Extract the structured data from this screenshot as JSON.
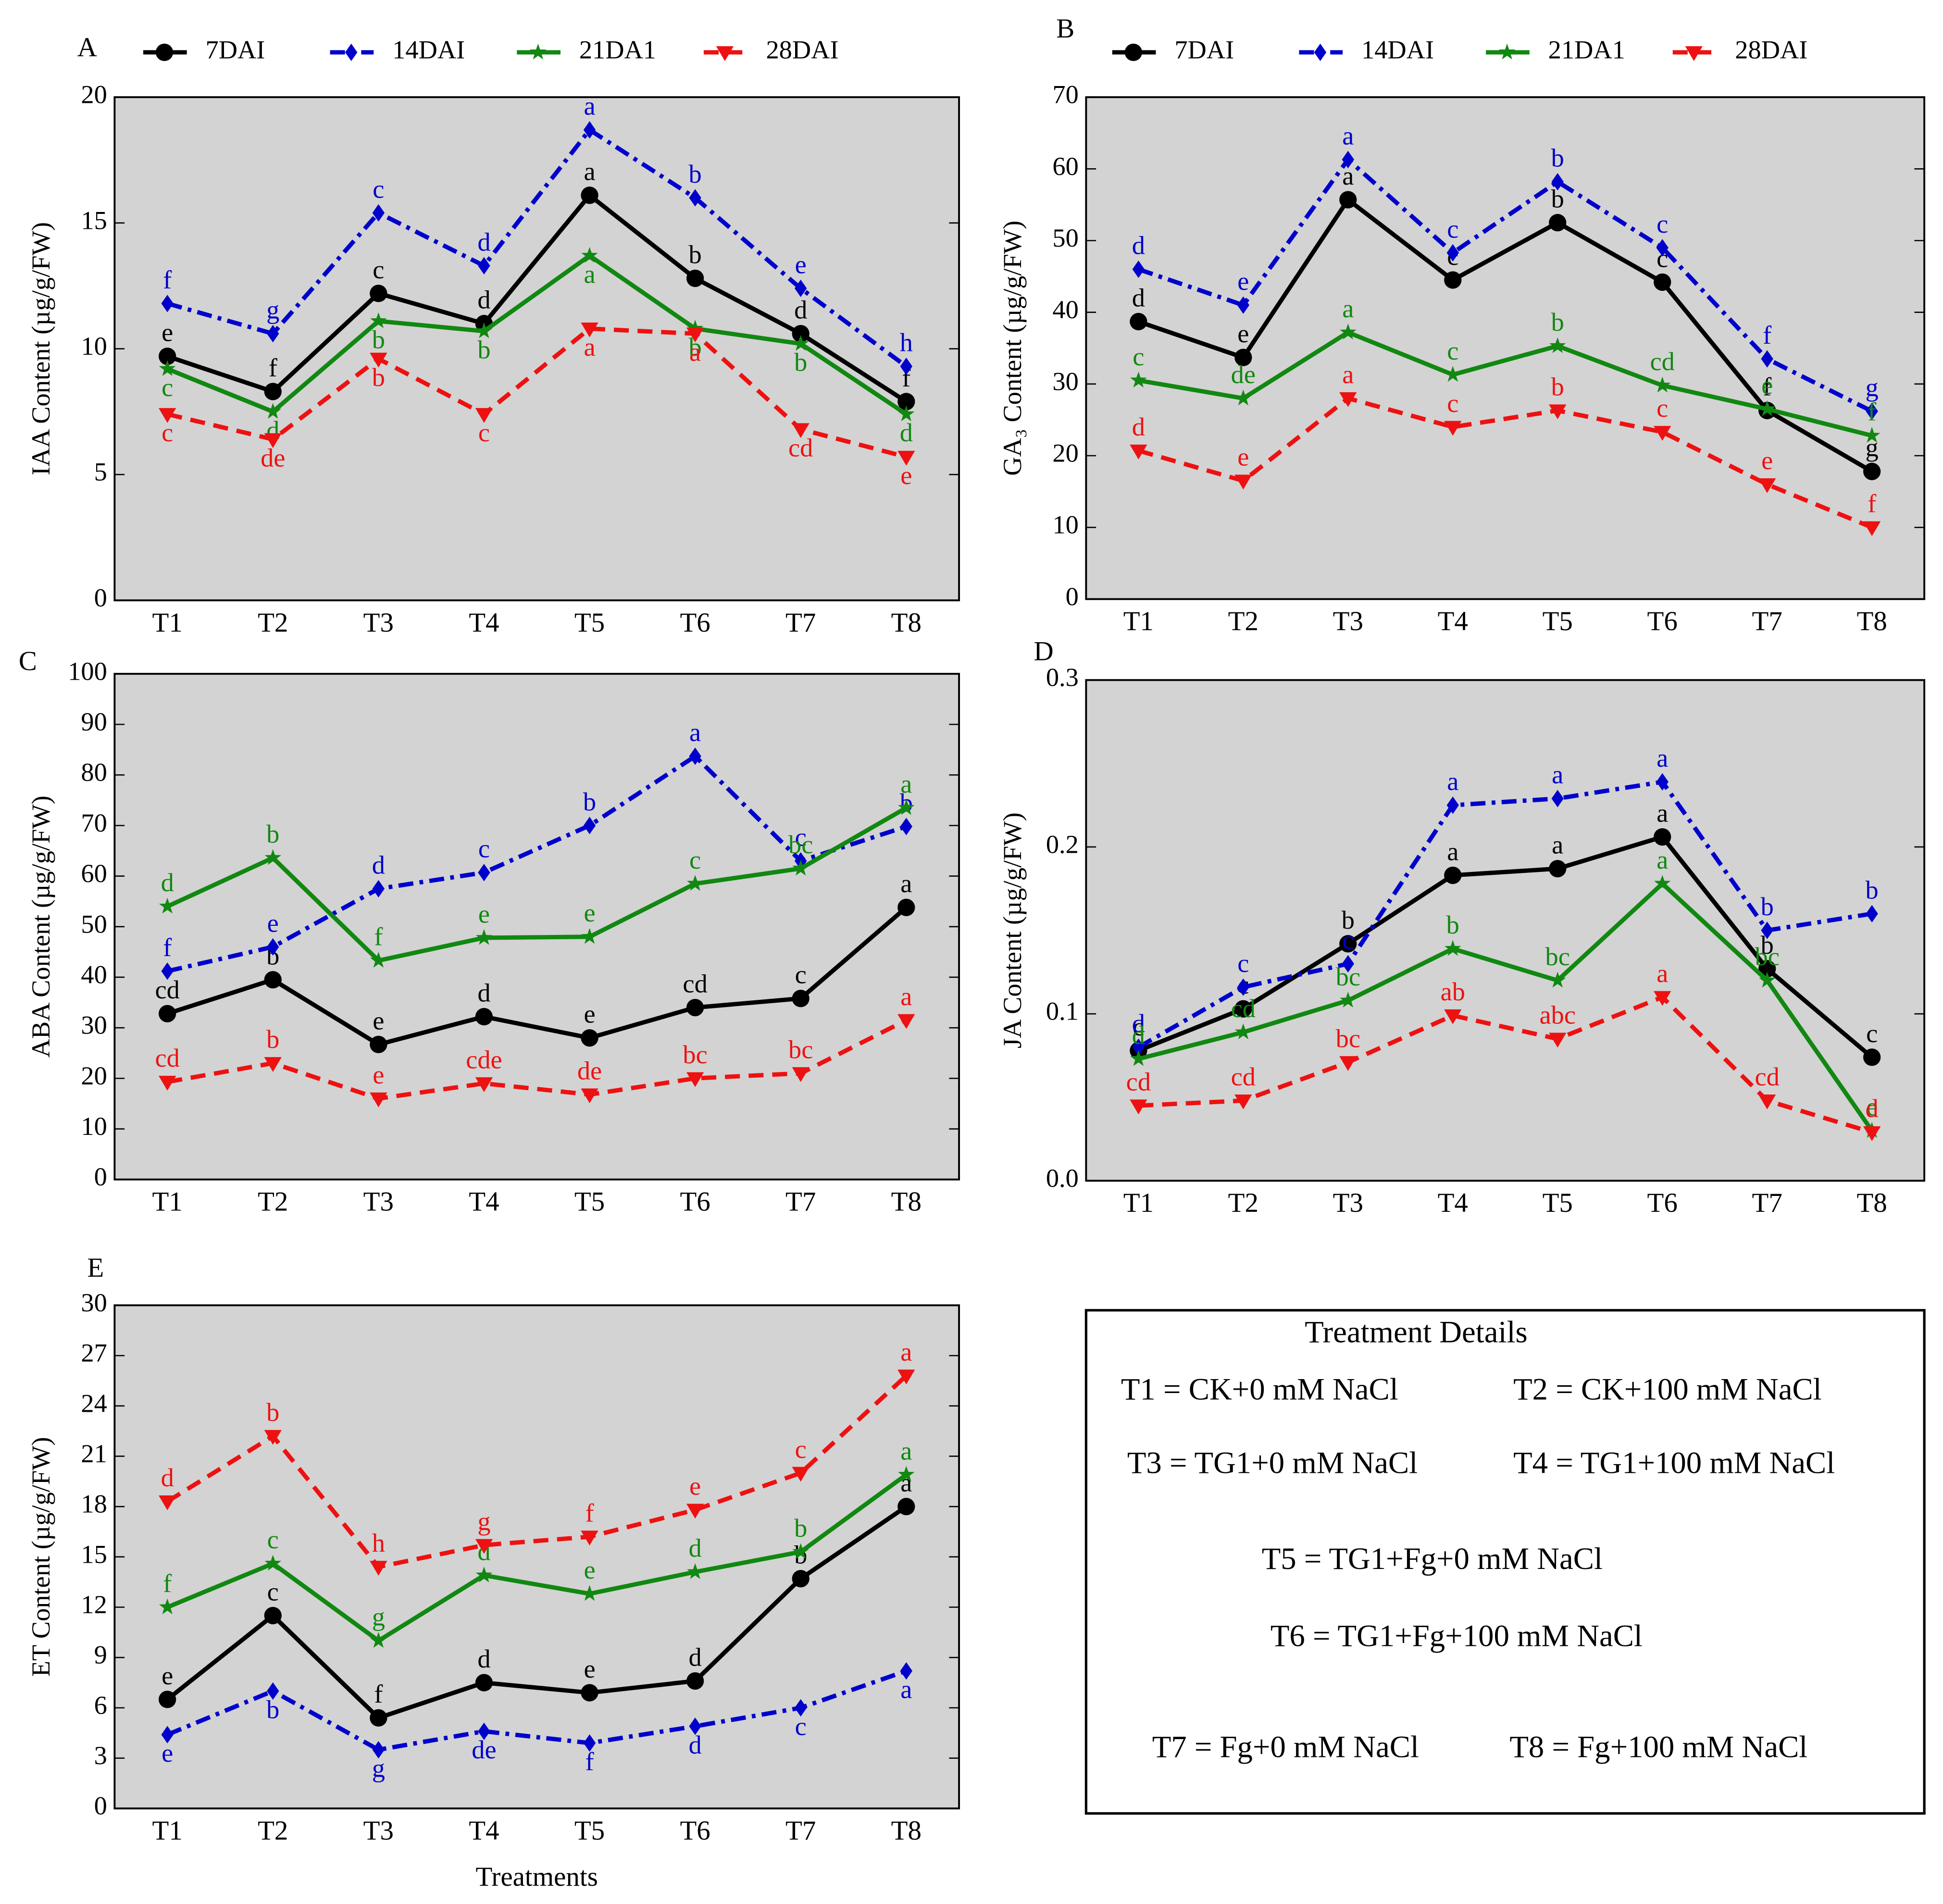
{
  "chart_data": [
    {
      "type": "line",
      "panel": "A",
      "ylabel": "IAA Content (µg/g/FW)",
      "categories": [
        "T1",
        "T2",
        "T3",
        "T4",
        "T5",
        "T6",
        "T7",
        "T8"
      ],
      "ylim": [
        0,
        20
      ],
      "yticks": [
        0,
        5,
        10,
        15,
        20
      ],
      "legend": "top",
      "series": [
        {
          "name": "7DAI",
          "color": "#000000",
          "style": "solid",
          "marker": "circle",
          "values": [
            9.7,
            8.3,
            12.2,
            11.0,
            16.1,
            12.8,
            10.6,
            7.9
          ],
          "labels": [
            "e",
            "f",
            "c",
            "d",
            "a",
            "b",
            "d",
            "f"
          ]
        },
        {
          "name": "14DAI",
          "color": "#0000cc",
          "style": "dashdot",
          "marker": "diamond",
          "values": [
            11.8,
            10.6,
            15.4,
            13.3,
            18.7,
            16.0,
            12.4,
            9.3
          ],
          "labels": [
            "f",
            "g",
            "c",
            "d",
            "a",
            "b",
            "e",
            "h"
          ]
        },
        {
          "name": "21DA1",
          "color": "#118811",
          "style": "solid",
          "marker": "star",
          "values": [
            9.2,
            7.5,
            11.1,
            10.7,
            13.7,
            10.8,
            10.2,
            7.4
          ],
          "labels": [
            "c",
            "d",
            "b",
            "b",
            "a",
            "b",
            "b",
            "d"
          ]
        },
        {
          "name": "28DAI",
          "color": "#ee1111",
          "style": "dashed",
          "marker": "triangle",
          "values": [
            7.4,
            6.4,
            9.6,
            7.4,
            10.8,
            10.6,
            6.8,
            5.7
          ],
          "labels": [
            "c",
            "de",
            "b",
            "c",
            "a",
            "a",
            "cd",
            "e"
          ]
        }
      ]
    },
    {
      "type": "line",
      "panel": "B",
      "ylabel": "GA₃ Content (µg/g/FW)",
      "categories": [
        "T1",
        "T2",
        "T3",
        "T4",
        "T5",
        "T6",
        "T7",
        "T8"
      ],
      "ylim": [
        0,
        70
      ],
      "yticks": [
        0,
        10,
        20,
        30,
        40,
        50,
        60,
        70
      ],
      "legend": "top",
      "series": [
        {
          "name": "7DAI",
          "color": "#000000",
          "style": "solid",
          "marker": "circle",
          "values": [
            38.7,
            33.7,
            55.7,
            44.5,
            52.5,
            44.2,
            26.3,
            17.8
          ],
          "labels": [
            "d",
            "e",
            "a",
            "c",
            "b",
            "c",
            "f",
            "g"
          ]
        },
        {
          "name": "14DAI",
          "color": "#0000cc",
          "style": "dashdot",
          "marker": "diamond",
          "values": [
            46,
            41,
            61.3,
            48.3,
            58.2,
            49,
            33.5,
            26.2
          ],
          "labels": [
            "d",
            "e",
            "a",
            "c",
            "b",
            "c",
            "f",
            "g"
          ]
        },
        {
          "name": "21DA1",
          "color": "#118811",
          "style": "solid",
          "marker": "star",
          "values": [
            30.5,
            28,
            37.2,
            31.3,
            35.3,
            29.8,
            26.5,
            22.8
          ],
          "labels": [
            "c",
            "de",
            "a",
            "c",
            "b",
            "cd",
            "e",
            "f"
          ]
        },
        {
          "name": "28DAI",
          "color": "#ee1111",
          "style": "dashed",
          "marker": "triangle",
          "values": [
            20.7,
            16.5,
            28,
            24,
            26.3,
            23.3,
            16,
            10
          ],
          "labels": [
            "d",
            "e",
            "a",
            "c",
            "b",
            "c",
            "e",
            "f"
          ]
        }
      ]
    },
    {
      "type": "line",
      "panel": "C",
      "ylabel": "ABA Content (µg/g/FW)",
      "categories": [
        "T1",
        "T2",
        "T3",
        "T4",
        "T5",
        "T6",
        "T7",
        "T8"
      ],
      "ylim": [
        0,
        100
      ],
      "yticks": [
        0,
        10,
        20,
        30,
        40,
        50,
        60,
        70,
        80,
        90,
        100
      ],
      "series": [
        {
          "color": "#000000",
          "style": "solid",
          "marker": "circle",
          "values": [
            32.8,
            39.5,
            26.7,
            32.2,
            28,
            34,
            35.8,
            53.8
          ],
          "labels": [
            "cd",
            "b",
            "e",
            "d",
            "e",
            "cd",
            "c",
            "a"
          ]
        },
        {
          "color": "#0000cc",
          "style": "dashdot",
          "marker": "diamond",
          "values": [
            41.2,
            46,
            57.5,
            60.7,
            70,
            83.7,
            63,
            69.8
          ],
          "labels": [
            "f",
            "e",
            "d",
            "c",
            "b",
            "a",
            "c",
            "b"
          ]
        },
        {
          "color": "#118811",
          "style": "solid",
          "marker": "star",
          "values": [
            54,
            63.6,
            43.3,
            47.8,
            48,
            58.5,
            61.5,
            73.5
          ],
          "labels": [
            "d",
            "b",
            "f",
            "e",
            "e",
            "c",
            "bc",
            "a"
          ]
        },
        {
          "color": "#ee1111",
          "style": "dashed",
          "marker": "triangle",
          "values": [
            19.3,
            23,
            16,
            19,
            16.8,
            20,
            21,
            31.5
          ],
          "labels": [
            "cd",
            "b",
            "e",
            "cde",
            "de",
            "bc",
            "bc",
            "a"
          ]
        }
      ]
    },
    {
      "type": "line",
      "panel": "D",
      "ylabel": "JA Content (µg/g/FW)",
      "categories": [
        "T1",
        "T2",
        "T3",
        "T4",
        "T5",
        "T6",
        "T7",
        "T8"
      ],
      "ylim": [
        0,
        0.3
      ],
      "yticks": [
        {
          "value": 0,
          "label": "0.0"
        },
        0.1,
        0.2,
        0.3
      ],
      "series": [
        {
          "color": "#000000",
          "style": "solid",
          "marker": "circle",
          "values": [
            0.078,
            0.103,
            0.142,
            0.183,
            0.187,
            0.206,
            0.127,
            0.074
          ],
          "labels": [
            "c",
            "c",
            "b",
            "a",
            "a",
            "a",
            "b",
            "c"
          ]
        },
        {
          "color": "#0000cc",
          "style": "dashdot",
          "marker": "diamond",
          "values": [
            0.08,
            0.116,
            0.13,
            0.225,
            0.229,
            0.239,
            0.15,
            0.16
          ],
          "labels": [
            "d",
            "c",
            "c",
            "a",
            "a",
            "a",
            "b",
            "b"
          ]
        },
        {
          "color": "#118811",
          "style": "solid",
          "marker": "star",
          "values": [
            0.073,
            0.089,
            0.108,
            0.139,
            0.12,
            0.178,
            0.12,
            0.03
          ],
          "labels": [
            "d",
            "cd",
            "bc",
            "b",
            "bc",
            "a",
            "bc",
            "e"
          ]
        },
        {
          "color": "#ee1111",
          "style": "dashed",
          "marker": "triangle",
          "values": [
            0.045,
            0.048,
            0.071,
            0.099,
            0.085,
            0.11,
            0.048,
            0.029
          ],
          "labels": [
            "cd",
            "cd",
            "bc",
            "ab",
            "abc",
            "a",
            "cd",
            "d"
          ]
        }
      ]
    },
    {
      "type": "line",
      "panel": "E",
      "ylabel": "ET Content (µg/g/FW)",
      "xlabel": "Treatments",
      "categories": [
        "T1",
        "T2",
        "T3",
        "T4",
        "T5",
        "T6",
        "T7",
        "T8"
      ],
      "ylim": [
        0,
        30
      ],
      "yticks": [
        0,
        3,
        6,
        9,
        12,
        15,
        18,
        21,
        24,
        27,
        30
      ],
      "series": [
        {
          "color": "#000000",
          "style": "solid",
          "marker": "circle",
          "values": [
            6.5,
            11.5,
            5.4,
            7.5,
            6.9,
            7.6,
            13.7,
            18
          ],
          "labels": [
            "e",
            "c",
            "f",
            "d",
            "e",
            "d",
            "b",
            "a"
          ]
        },
        {
          "color": "#0000cc",
          "style": "dashdot",
          "marker": "diamond",
          "values": [
            4.4,
            7,
            3.5,
            4.6,
            3.9,
            4.9,
            6,
            8.2
          ],
          "labels": [
            "e",
            "b",
            "g",
            "de",
            "f",
            "d",
            "c",
            "a"
          ]
        },
        {
          "color": "#118811",
          "style": "solid",
          "marker": "star",
          "values": [
            12,
            14.6,
            10,
            13.9,
            12.8,
            14.1,
            15.3,
            19.9
          ],
          "labels": [
            "f",
            "c",
            "g",
            "d",
            "e",
            "d",
            "b",
            "a"
          ]
        },
        {
          "color": "#ee1111",
          "style": "dashed",
          "marker": "triangle",
          "values": [
            18.3,
            22.2,
            14.4,
            15.7,
            16.2,
            17.8,
            20,
            25.8
          ],
          "labels": [
            "d",
            "b",
            "h",
            "g",
            "f",
            "e",
            "c",
            "a"
          ]
        }
      ]
    }
  ],
  "treatment_details": {
    "title": "Treatment Details",
    "items": [
      "T1 = CK+0 mM NaCl",
      "T2 = CK+100 mM NaCl",
      "T3 = TG1+0 mM NaCl",
      "T4 = TG1+100 mM NaCl",
      "T5 = TG1+Fg+0 mM NaCl",
      "T6 = TG1+Fg+100 mM NaCl",
      "T7 = Fg+0 mM NaCl",
      "T8 = Fg+100 mM NaCl"
    ]
  }
}
